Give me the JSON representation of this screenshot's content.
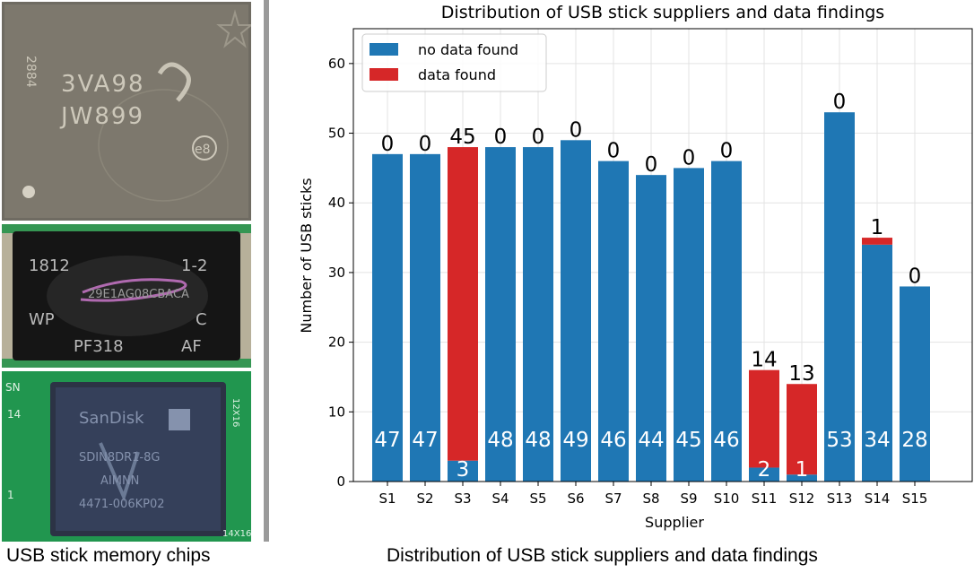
{
  "photos": {
    "chip1": {
      "lines": [
        "2884",
        "3VA98",
        "JW899",
        "e8"
      ]
    },
    "chip2": {
      "lines": [
        "1812",
        "1-2",
        "29E1AG08CBACA",
        "WP",
        "C",
        "PF318",
        "AF"
      ]
    },
    "chip3": {
      "lines": [
        "SanDisk",
        "SDIN8DR1-8G",
        "AIMNN",
        "4471-006KP02"
      ]
    },
    "board_labels": [
      "SN",
      "14",
      "1",
      "12X16",
      "14X16"
    ]
  },
  "captions": {
    "left": "USB stick memory chips",
    "right": "Distribution of USB stick suppliers and data findings"
  },
  "colors": {
    "no_data": "#1f77b4",
    "data": "#d62728",
    "divider": "#9a9a9a"
  },
  "chart_data": {
    "type": "bar",
    "title": "Distribution of USB stick suppliers and data findings",
    "xlabel": "Supplier",
    "ylabel": "Number of USB sticks",
    "ylim": [
      0,
      65
    ],
    "yticks": [
      0,
      10,
      20,
      30,
      40,
      50,
      60
    ],
    "grid": true,
    "stacked": true,
    "legend_position": "top-left",
    "categories": [
      "S1",
      "S2",
      "S3",
      "S4",
      "S5",
      "S6",
      "S7",
      "S8",
      "S9",
      "S10",
      "S11",
      "S12",
      "S13",
      "S14",
      "S15"
    ],
    "series": [
      {
        "name": "no data found",
        "color": "#1f77b4",
        "values": [
          47,
          47,
          3,
          48,
          48,
          49,
          46,
          44,
          45,
          46,
          2,
          1,
          53,
          34,
          28
        ]
      },
      {
        "name": "data found",
        "color": "#d62728",
        "values": [
          0,
          0,
          45,
          0,
          0,
          0,
          0,
          0,
          0,
          0,
          14,
          13,
          0,
          1,
          0
        ]
      }
    ]
  }
}
